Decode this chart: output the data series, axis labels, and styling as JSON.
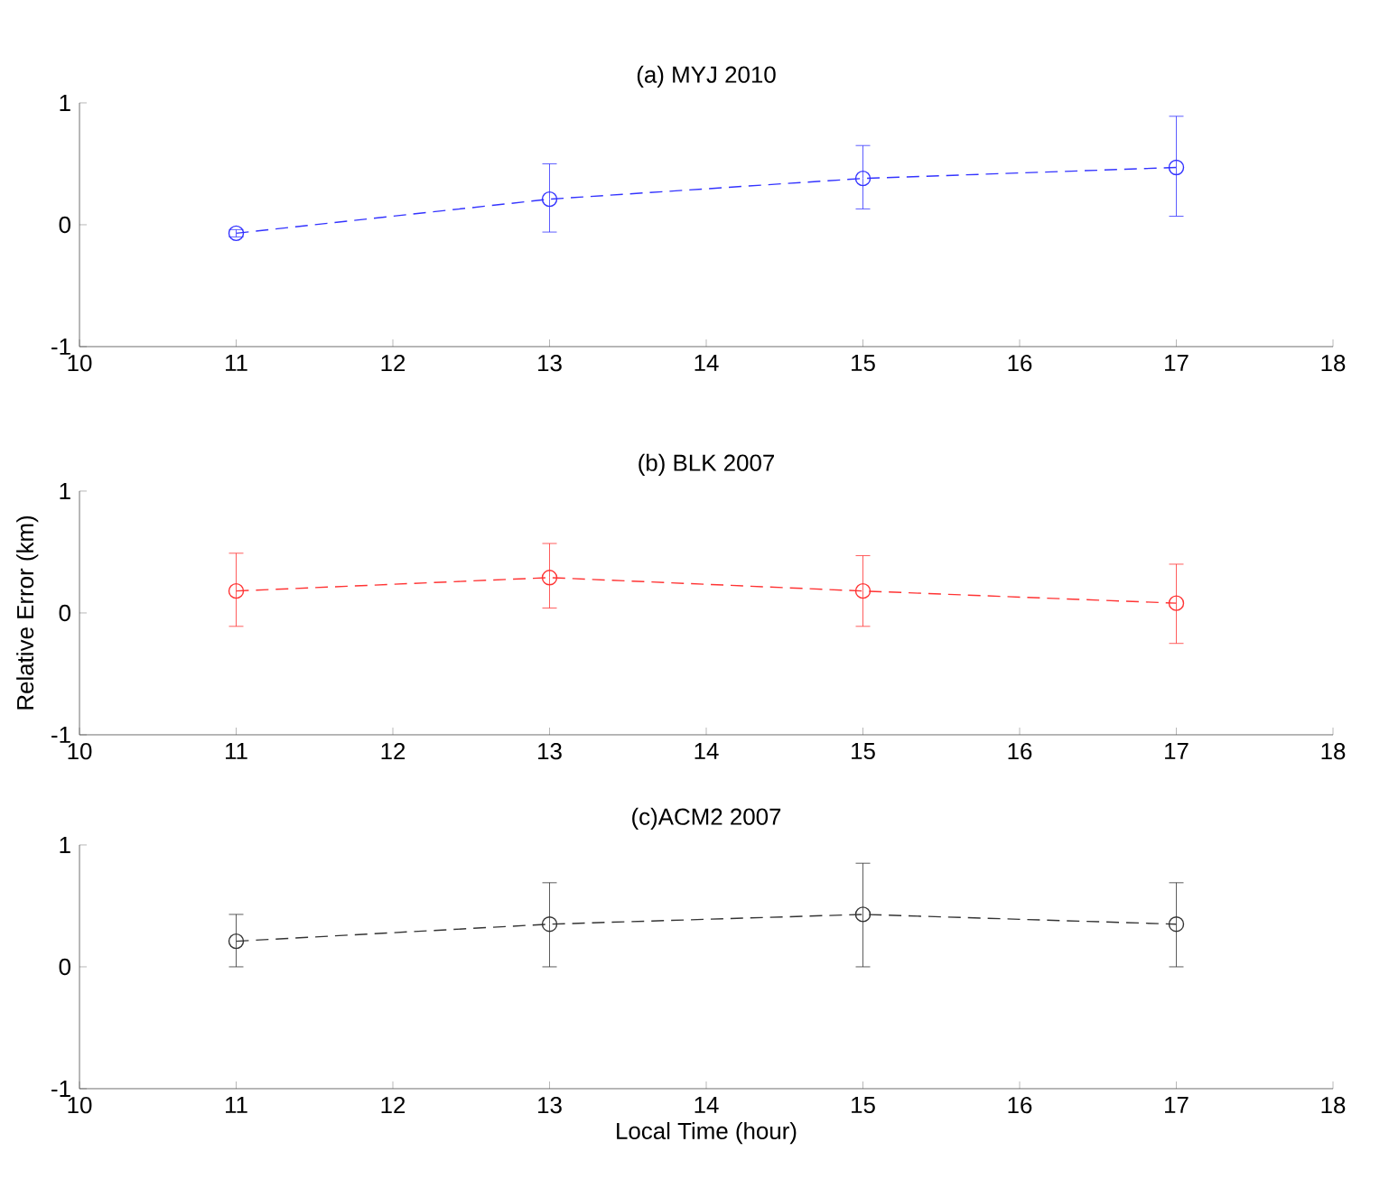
{
  "chart_data": [
    {
      "type": "line",
      "title": "(a) MYJ 2010",
      "x": [
        11,
        13,
        15,
        17
      ],
      "xlim": [
        10,
        18
      ],
      "xticks": [
        10,
        11,
        12,
        13,
        14,
        15,
        16,
        17,
        18
      ],
      "ylim": [
        -1,
        1
      ],
      "yticks": [
        -1,
        0,
        1
      ],
      "marker": "circle",
      "line_style": "dashed",
      "series": [
        {
          "color": "#3333ff",
          "values": [
            -0.07,
            0.21,
            0.38,
            0.47
          ],
          "errors": [
            [
              -0.1,
              -0.04
            ],
            [
              -0.06,
              0.5
            ],
            [
              0.13,
              0.65
            ],
            [
              0.07,
              0.89
            ]
          ]
        }
      ]
    },
    {
      "type": "line",
      "title": "(b) BLK 2007",
      "ylabel": "Relative Error (km)",
      "x": [
        11,
        13,
        15,
        17
      ],
      "xlim": [
        10,
        18
      ],
      "xticks": [
        10,
        11,
        12,
        13,
        14,
        15,
        16,
        17,
        18
      ],
      "ylim": [
        -1,
        1
      ],
      "yticks": [
        -1,
        0,
        1
      ],
      "marker": "circle",
      "line_style": "dashed",
      "series": [
        {
          "color": "#ff3333",
          "values": [
            0.18,
            0.29,
            0.18,
            0.08
          ],
          "errors": [
            [
              -0.11,
              0.49
            ],
            [
              0.04,
              0.57
            ],
            [
              -0.11,
              0.47
            ],
            [
              -0.25,
              0.4
            ]
          ]
        }
      ]
    },
    {
      "type": "line",
      "title": "(c)ACM2 2007",
      "xlabel": "Local Time (hour)",
      "x": [
        11,
        13,
        15,
        17
      ],
      "xlim": [
        10,
        18
      ],
      "xticks": [
        10,
        11,
        12,
        13,
        14,
        15,
        16,
        17,
        18
      ],
      "ylim": [
        -1,
        1
      ],
      "yticks": [
        -1,
        0,
        1
      ],
      "marker": "circle",
      "line_style": "dashed",
      "series": [
        {
          "color": "#333333",
          "values": [
            0.21,
            0.35,
            0.43,
            0.35
          ],
          "errors": [
            [
              0,
              0.43
            ],
            [
              0,
              0.69
            ],
            [
              0,
              0.85
            ],
            [
              0,
              0.69
            ]
          ]
        }
      ]
    }
  ]
}
